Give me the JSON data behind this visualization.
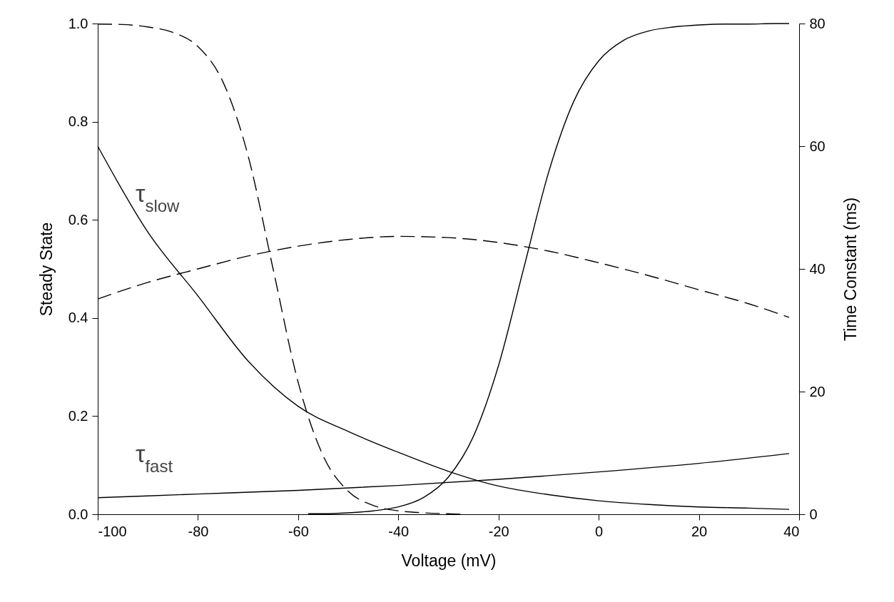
{
  "chart_data": {
    "type": "line",
    "xlabel": "Voltage (mV)",
    "ylabel": "Steady State",
    "y2label": "Time Constant (ms)",
    "xlim": [
      -100,
      40
    ],
    "xticks": [
      -100,
      -80,
      -60,
      -40,
      -20,
      0,
      20,
      40
    ],
    "ylim": [
      0,
      1
    ],
    "yticks": [
      {
        "value": 0,
        "label": "0.0"
      },
      0.2,
      0.4,
      0.6,
      0.8,
      {
        "value": 1,
        "label": "1.0"
      }
    ],
    "y2lim": [
      0,
      80
    ],
    "y2ticks": [
      0,
      20,
      40,
      60,
      80
    ],
    "grid": false,
    "legend": false,
    "marker": "none",
    "series": [
      {
        "color": "#000000",
        "line_style": "solid",
        "x": [
          -58,
          -55,
          -50,
          -45,
          -40,
          -35,
          -30,
          -25,
          -20,
          -15,
          -10,
          -5,
          0,
          5,
          10,
          15,
          20,
          25,
          30,
          35,
          38
        ],
        "values": [
          0.001,
          0.001,
          0.003,
          0.007,
          0.015,
          0.034,
          0.076,
          0.159,
          0.303,
          0.5,
          0.697,
          0.841,
          0.924,
          0.966,
          0.985,
          0.993,
          0.997,
          0.999,
          0.999,
          1.0,
          1.0
        ]
      },
      {
        "color": "#000000",
        "line_style": "dashed",
        "x": [
          -100,
          -95,
          -90,
          -85,
          -80,
          -75,
          -70,
          -65,
          -60,
          -55,
          -50,
          -45,
          -40,
          -35,
          -30,
          -27
        ],
        "values": [
          0.999,
          0.998,
          0.993,
          0.982,
          0.953,
          0.881,
          0.731,
          0.5,
          0.269,
          0.119,
          0.047,
          0.018,
          0.007,
          0.003,
          0.001,
          0.0
        ]
      },
      {
        "color": "#000000",
        "line_style": "solid",
        "axis": "y2",
        "x": [
          -100,
          -90,
          -80,
          -70,
          -60,
          -50,
          -40,
          -30,
          -20,
          -10,
          0,
          10,
          20,
          30,
          38
        ],
        "values": [
          60,
          46,
          35.6,
          25,
          17.6,
          13.5,
          10.1,
          7,
          4.6,
          3.2,
          2.2,
          1.6,
          1.2,
          1.0,
          0.8
        ]
      },
      {
        "color": "#000000",
        "line_style": "solid",
        "axis": "y2",
        "x": [
          -100,
          -80,
          -60,
          -40,
          -20,
          0,
          20,
          38
        ],
        "values": [
          2.7,
          3.3,
          3.9,
          4.7,
          5.7,
          6.9,
          8.3,
          9.9
        ]
      },
      {
        "color": "#000000",
        "line_style": "dashed",
        "axis": "y2",
        "x": [
          -100,
          -90,
          -80,
          -70,
          -60,
          -50,
          -40,
          -30,
          -20,
          -10,
          0,
          10,
          20,
          30,
          38
        ],
        "values": [
          35.1,
          37.8,
          40.0,
          42.1,
          43.7,
          44.8,
          45.3,
          45.1,
          44.3,
          42.9,
          41.0,
          38.9,
          36.6,
          34.3,
          32.1
        ]
      }
    ],
    "annotations": [
      "τ$_{slow}$",
      "τ$_{fast}$"
    ]
  }
}
